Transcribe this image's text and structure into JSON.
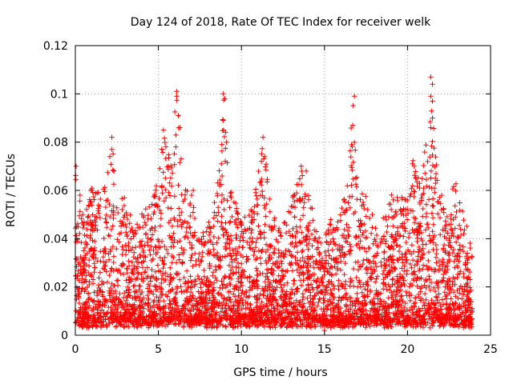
{
  "chart_data": {
    "type": "scatter",
    "title": "Day 124 of 2018, Rate Of TEC Index for receiver welk",
    "xlabel": "GPS time / hours",
    "ylabel": "ROTI / TECUs",
    "xlim": [
      0,
      25
    ],
    "ylim": [
      0,
      0.12
    ],
    "x_ticks": [
      0,
      5,
      10,
      15,
      20,
      25
    ],
    "y_ticks": [
      0,
      0.02,
      0.04,
      0.06,
      0.08,
      0.1,
      0.12
    ],
    "x_tick_labels": [
      "0",
      "5",
      "10",
      "15",
      "20",
      "25"
    ],
    "y_tick_labels": [
      "0",
      "0.02",
      "0.04",
      "0.06",
      "0.08",
      "0.1",
      "0.12"
    ],
    "grid": true,
    "marker": "+",
    "marker_color": "#ff0000",
    "series": [
      {
        "name": "ROTI",
        "x_range": [
          0,
          23.9
        ],
        "envelope": [
          [
            0.0,
            0.07
          ],
          [
            0.5,
            0.048
          ],
          [
            1.0,
            0.065
          ],
          [
            1.5,
            0.06
          ],
          [
            2.0,
            0.07
          ],
          [
            2.2,
            0.082
          ],
          [
            2.5,
            0.055
          ],
          [
            3.0,
            0.06
          ],
          [
            3.5,
            0.045
          ],
          [
            4.0,
            0.05
          ],
          [
            4.5,
            0.055
          ],
          [
            5.0,
            0.07
          ],
          [
            5.3,
            0.085
          ],
          [
            5.7,
            0.07
          ],
          [
            6.1,
            0.101
          ],
          [
            6.5,
            0.065
          ],
          [
            7.0,
            0.055
          ],
          [
            7.5,
            0.04
          ],
          [
            8.0,
            0.045
          ],
          [
            8.5,
            0.06
          ],
          [
            8.9,
            0.1
          ],
          [
            9.3,
            0.07
          ],
          [
            9.8,
            0.05
          ],
          [
            10.3,
            0.05
          ],
          [
            10.8,
            0.06
          ],
          [
            11.3,
            0.082
          ],
          [
            11.8,
            0.05
          ],
          [
            12.3,
            0.045
          ],
          [
            12.8,
            0.05
          ],
          [
            13.3,
            0.065
          ],
          [
            13.7,
            0.07
          ],
          [
            14.2,
            0.055
          ],
          [
            14.8,
            0.04
          ],
          [
            15.3,
            0.045
          ],
          [
            15.8,
            0.055
          ],
          [
            16.3,
            0.06
          ],
          [
            16.7,
            0.099
          ],
          [
            17.1,
            0.06
          ],
          [
            17.6,
            0.055
          ],
          [
            18.2,
            0.05
          ],
          [
            18.8,
            0.055
          ],
          [
            19.3,
            0.06
          ],
          [
            19.8,
            0.055
          ],
          [
            20.3,
            0.071
          ],
          [
            20.8,
            0.065
          ],
          [
            21.4,
            0.107
          ],
          [
            21.8,
            0.065
          ],
          [
            22.3,
            0.055
          ],
          [
            22.8,
            0.065
          ],
          [
            23.3,
            0.05
          ],
          [
            23.9,
            0.035
          ]
        ],
        "baseline": 0.005,
        "highlights": [
          [
            6.1,
            0.101
          ],
          [
            6.1,
            0.099
          ],
          [
            6.2,
            0.091
          ],
          [
            6.3,
            0.086
          ],
          [
            8.9,
            0.1
          ],
          [
            9.0,
            0.098
          ],
          [
            8.9,
            0.089
          ],
          [
            9.1,
            0.08
          ],
          [
            11.3,
            0.082
          ],
          [
            11.4,
            0.074
          ],
          [
            11.2,
            0.072
          ],
          [
            16.8,
            0.099
          ],
          [
            16.7,
            0.087
          ],
          [
            21.4,
            0.107
          ],
          [
            21.5,
            0.104
          ],
          [
            21.4,
            0.099
          ],
          [
            21.5,
            0.097
          ],
          [
            21.5,
            0.09
          ],
          [
            21.4,
            0.086
          ],
          [
            20.3,
            0.071
          ],
          [
            20.4,
            0.07
          ],
          [
            2.2,
            0.082
          ],
          [
            2.2,
            0.077
          ],
          [
            0.05,
            0.07
          ],
          [
            5.3,
            0.085
          ],
          [
            13.6,
            0.07
          ],
          [
            13.9,
            0.068
          ],
          [
            7.1,
            0.06
          ],
          [
            7.0,
            0.058
          ],
          [
            15.0,
            0.002
          ],
          [
            15.1,
            0.006
          ]
        ],
        "samples_shown": 4500
      }
    ]
  }
}
